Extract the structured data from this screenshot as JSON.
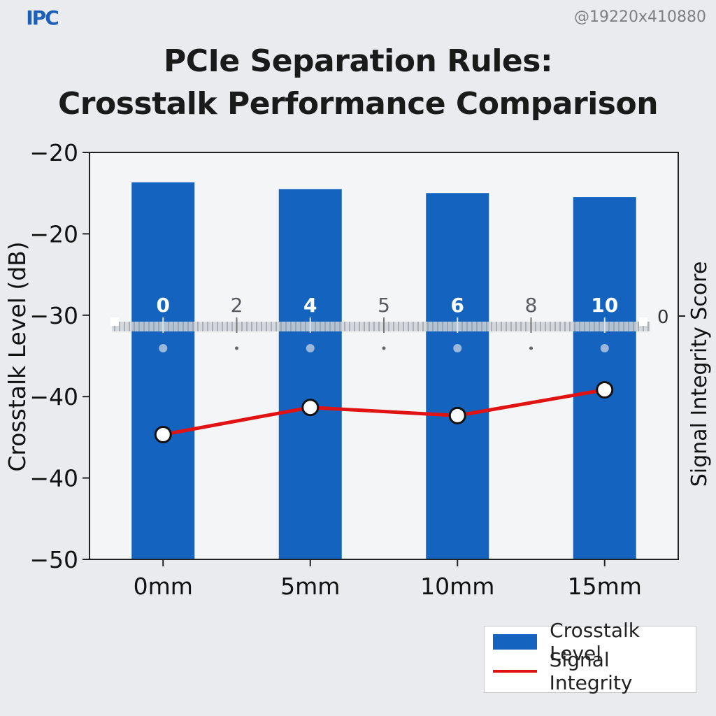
{
  "header": {
    "logo_text": "IPC",
    "corner_text": "@19220x410880",
    "title_line1": "PCIe Separation Rules:",
    "title_line2": "Crosstalk Performance Comparison"
  },
  "colors": {
    "bar": "#1464bf",
    "line": "#e01212",
    "background": "#e9ebee",
    "plot_background": "#f4f5f7"
  },
  "chart_data": {
    "type": "bar",
    "categories": [
      "0mm",
      "5mm",
      "10mm",
      "15mm"
    ],
    "ylabel": "Crosstalk Level (dB)",
    "y2label": "Signal Integrity Score",
    "y_tick_labels": [
      "-20",
      "-20",
      "-30",
      "-40",
      "-40",
      "-50"
    ],
    "ylim": [
      -50,
      -20
    ],
    "grid": false,
    "legend_position": "bottom-right",
    "series": [
      {
        "name": "Crosstalk Level",
        "type": "bar",
        "values": [
          -22.2,
          -22.7,
          -23.0,
          -23.3
        ]
      },
      {
        "name": "Signal Integrity",
        "type": "line",
        "values": [
          -40.8,
          -38.8,
          -39.4,
          -37.5
        ]
      }
    ],
    "ruler": {
      "major_labels": [
        "0",
        "2",
        "4",
        "5",
        "6",
        "8",
        "10"
      ],
      "end_label": "0"
    }
  }
}
